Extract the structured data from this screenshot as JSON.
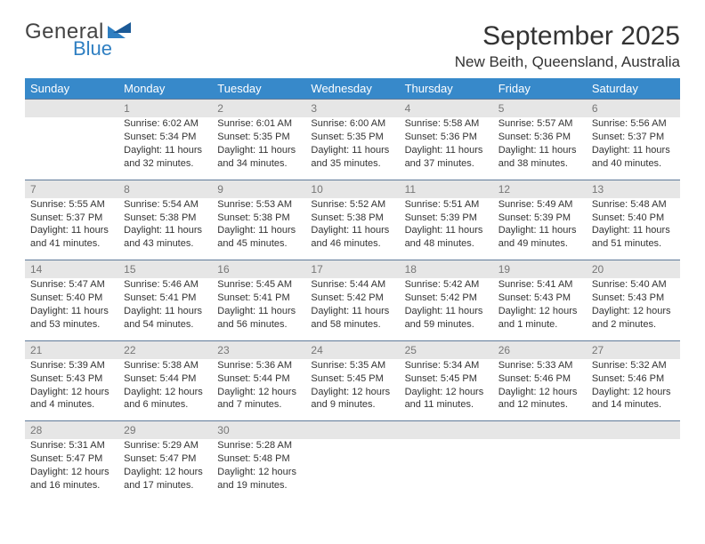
{
  "logo": {
    "word1": "General",
    "word2": "Blue"
  },
  "title": "September 2025",
  "location": "New Beith, Queensland, Australia",
  "colors": {
    "header_bg": "#3789ca",
    "header_text": "#ffffff",
    "daynum_bg": "#e6e6e6",
    "daynum_text": "#777777",
    "daynum_border": "#5f7a99",
    "body_text": "#333333",
    "logo_blue": "#2f7fc2",
    "page_bg": "#ffffff"
  },
  "typography": {
    "title_fontsize": 30,
    "location_fontsize": 17,
    "header_fontsize": 13,
    "cell_fontsize": 11,
    "daynum_fontsize": 12
  },
  "weekdays": [
    "Sunday",
    "Monday",
    "Tuesday",
    "Wednesday",
    "Thursday",
    "Friday",
    "Saturday"
  ],
  "weeks": [
    [
      null,
      {
        "n": "1",
        "sunrise": "Sunrise: 6:02 AM",
        "sunset": "Sunset: 5:34 PM",
        "daylight": "Daylight: 11 hours and 32 minutes."
      },
      {
        "n": "2",
        "sunrise": "Sunrise: 6:01 AM",
        "sunset": "Sunset: 5:35 PM",
        "daylight": "Daylight: 11 hours and 34 minutes."
      },
      {
        "n": "3",
        "sunrise": "Sunrise: 6:00 AM",
        "sunset": "Sunset: 5:35 PM",
        "daylight": "Daylight: 11 hours and 35 minutes."
      },
      {
        "n": "4",
        "sunrise": "Sunrise: 5:58 AM",
        "sunset": "Sunset: 5:36 PM",
        "daylight": "Daylight: 11 hours and 37 minutes."
      },
      {
        "n": "5",
        "sunrise": "Sunrise: 5:57 AM",
        "sunset": "Sunset: 5:36 PM",
        "daylight": "Daylight: 11 hours and 38 minutes."
      },
      {
        "n": "6",
        "sunrise": "Sunrise: 5:56 AM",
        "sunset": "Sunset: 5:37 PM",
        "daylight": "Daylight: 11 hours and 40 minutes."
      }
    ],
    [
      {
        "n": "7",
        "sunrise": "Sunrise: 5:55 AM",
        "sunset": "Sunset: 5:37 PM",
        "daylight": "Daylight: 11 hours and 41 minutes."
      },
      {
        "n": "8",
        "sunrise": "Sunrise: 5:54 AM",
        "sunset": "Sunset: 5:38 PM",
        "daylight": "Daylight: 11 hours and 43 minutes."
      },
      {
        "n": "9",
        "sunrise": "Sunrise: 5:53 AM",
        "sunset": "Sunset: 5:38 PM",
        "daylight": "Daylight: 11 hours and 45 minutes."
      },
      {
        "n": "10",
        "sunrise": "Sunrise: 5:52 AM",
        "sunset": "Sunset: 5:38 PM",
        "daylight": "Daylight: 11 hours and 46 minutes."
      },
      {
        "n": "11",
        "sunrise": "Sunrise: 5:51 AM",
        "sunset": "Sunset: 5:39 PM",
        "daylight": "Daylight: 11 hours and 48 minutes."
      },
      {
        "n": "12",
        "sunrise": "Sunrise: 5:49 AM",
        "sunset": "Sunset: 5:39 PM",
        "daylight": "Daylight: 11 hours and 49 minutes."
      },
      {
        "n": "13",
        "sunrise": "Sunrise: 5:48 AM",
        "sunset": "Sunset: 5:40 PM",
        "daylight": "Daylight: 11 hours and 51 minutes."
      }
    ],
    [
      {
        "n": "14",
        "sunrise": "Sunrise: 5:47 AM",
        "sunset": "Sunset: 5:40 PM",
        "daylight": "Daylight: 11 hours and 53 minutes."
      },
      {
        "n": "15",
        "sunrise": "Sunrise: 5:46 AM",
        "sunset": "Sunset: 5:41 PM",
        "daylight": "Daylight: 11 hours and 54 minutes."
      },
      {
        "n": "16",
        "sunrise": "Sunrise: 5:45 AM",
        "sunset": "Sunset: 5:41 PM",
        "daylight": "Daylight: 11 hours and 56 minutes."
      },
      {
        "n": "17",
        "sunrise": "Sunrise: 5:44 AM",
        "sunset": "Sunset: 5:42 PM",
        "daylight": "Daylight: 11 hours and 58 minutes."
      },
      {
        "n": "18",
        "sunrise": "Sunrise: 5:42 AM",
        "sunset": "Sunset: 5:42 PM",
        "daylight": "Daylight: 11 hours and 59 minutes."
      },
      {
        "n": "19",
        "sunrise": "Sunrise: 5:41 AM",
        "sunset": "Sunset: 5:43 PM",
        "daylight": "Daylight: 12 hours and 1 minute."
      },
      {
        "n": "20",
        "sunrise": "Sunrise: 5:40 AM",
        "sunset": "Sunset: 5:43 PM",
        "daylight": "Daylight: 12 hours and 2 minutes."
      }
    ],
    [
      {
        "n": "21",
        "sunrise": "Sunrise: 5:39 AM",
        "sunset": "Sunset: 5:43 PM",
        "daylight": "Daylight: 12 hours and 4 minutes."
      },
      {
        "n": "22",
        "sunrise": "Sunrise: 5:38 AM",
        "sunset": "Sunset: 5:44 PM",
        "daylight": "Daylight: 12 hours and 6 minutes."
      },
      {
        "n": "23",
        "sunrise": "Sunrise: 5:36 AM",
        "sunset": "Sunset: 5:44 PM",
        "daylight": "Daylight: 12 hours and 7 minutes."
      },
      {
        "n": "24",
        "sunrise": "Sunrise: 5:35 AM",
        "sunset": "Sunset: 5:45 PM",
        "daylight": "Daylight: 12 hours and 9 minutes."
      },
      {
        "n": "25",
        "sunrise": "Sunrise: 5:34 AM",
        "sunset": "Sunset: 5:45 PM",
        "daylight": "Daylight: 12 hours and 11 minutes."
      },
      {
        "n": "26",
        "sunrise": "Sunrise: 5:33 AM",
        "sunset": "Sunset: 5:46 PM",
        "daylight": "Daylight: 12 hours and 12 minutes."
      },
      {
        "n": "27",
        "sunrise": "Sunrise: 5:32 AM",
        "sunset": "Sunset: 5:46 PM",
        "daylight": "Daylight: 12 hours and 14 minutes."
      }
    ],
    [
      {
        "n": "28",
        "sunrise": "Sunrise: 5:31 AM",
        "sunset": "Sunset: 5:47 PM",
        "daylight": "Daylight: 12 hours and 16 minutes."
      },
      {
        "n": "29",
        "sunrise": "Sunrise: 5:29 AM",
        "sunset": "Sunset: 5:47 PM",
        "daylight": "Daylight: 12 hours and 17 minutes."
      },
      {
        "n": "30",
        "sunrise": "Sunrise: 5:28 AM",
        "sunset": "Sunset: 5:48 PM",
        "daylight": "Daylight: 12 hours and 19 minutes."
      },
      null,
      null,
      null,
      null
    ]
  ]
}
